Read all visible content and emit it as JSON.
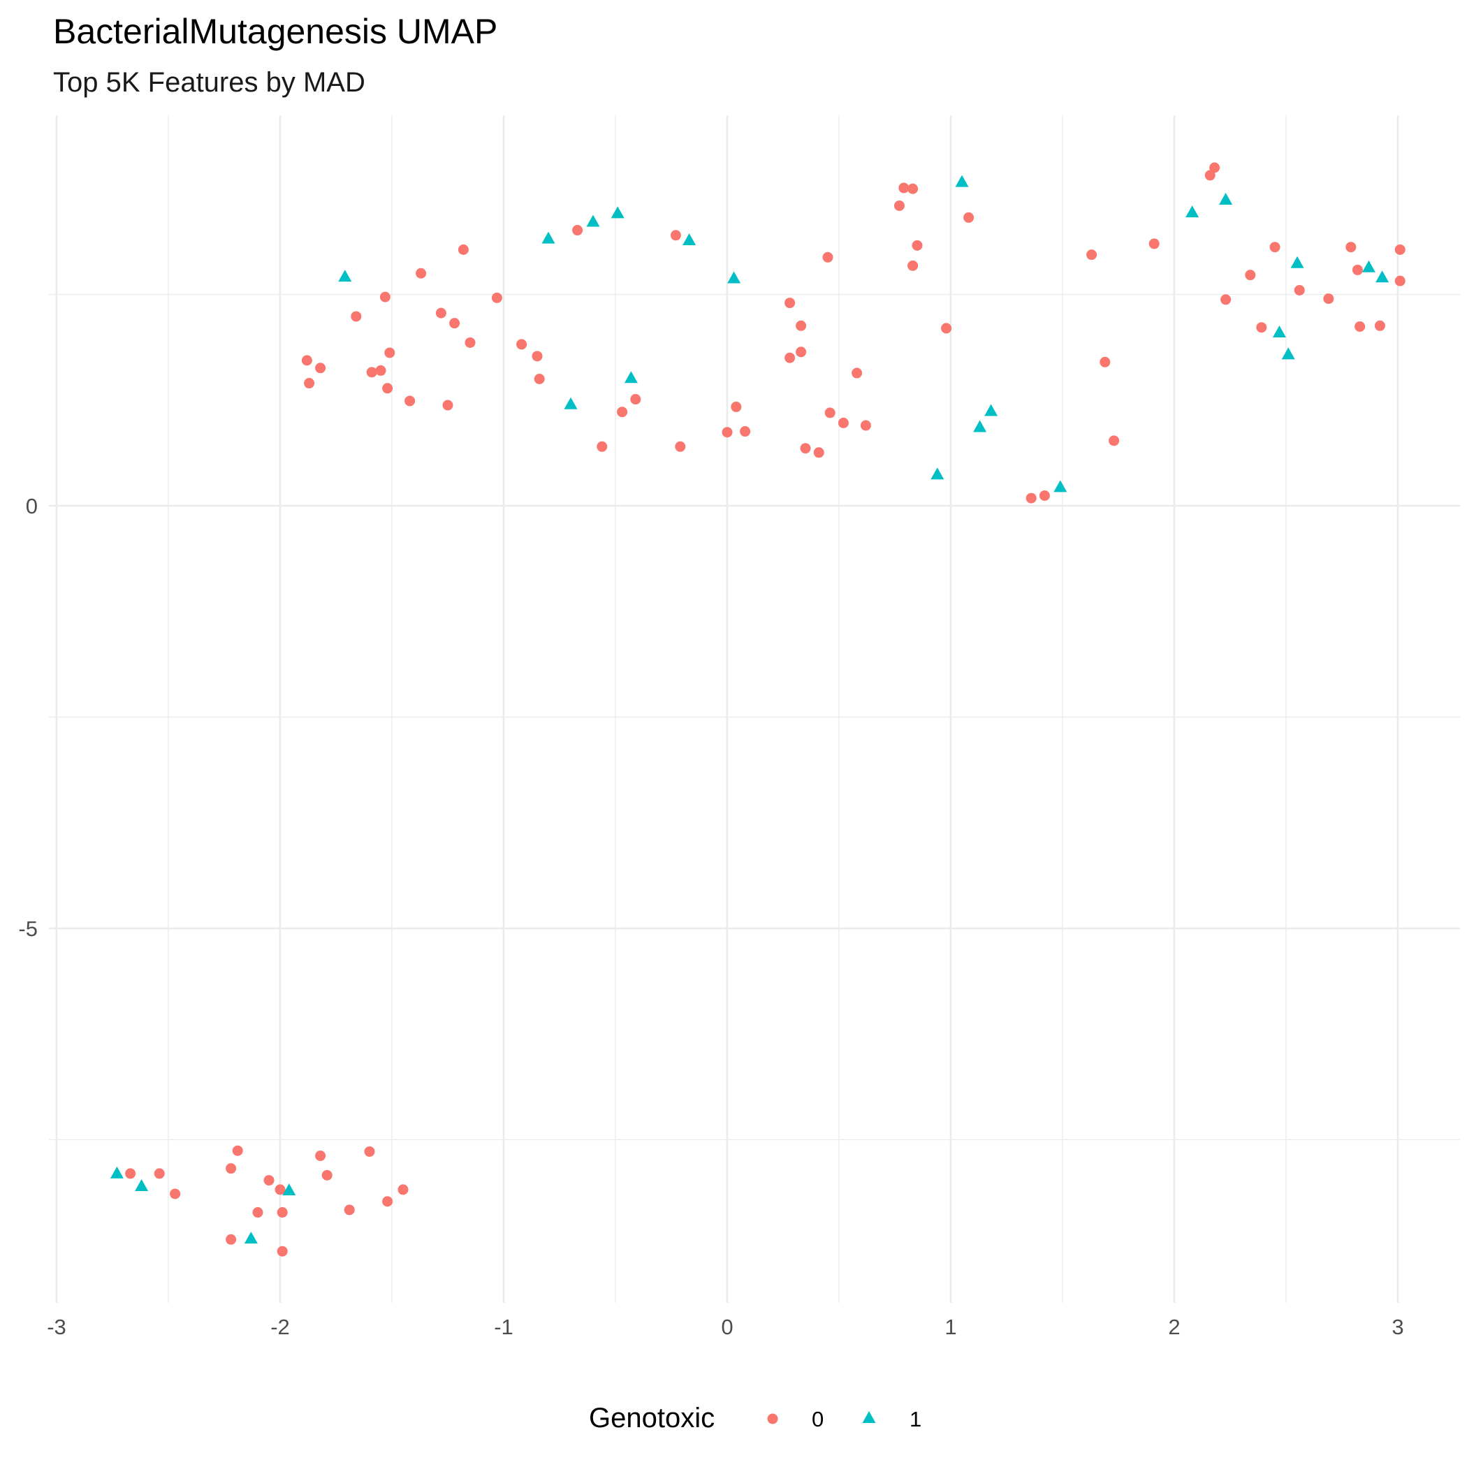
{
  "chart_data": {
    "type": "scatter",
    "title": "BacterialMutagenesis UMAP",
    "subtitle": "Top 5K Features by MAD",
    "xlabel": "",
    "ylabel": "",
    "xlim": [
      -3,
      3.3
    ],
    "ylim": [
      -9.3,
      4.7
    ],
    "x_ticks": [
      -3,
      -2,
      -1,
      0,
      1,
      2,
      3
    ],
    "y_ticks": [
      0,
      -5
    ],
    "grid": true,
    "legend": {
      "title": "Genotoxic",
      "position": "bottom",
      "entries": [
        {
          "label": "0",
          "color": "#F8766D",
          "shape": "circle"
        },
        {
          "label": "1",
          "color": "#00BFC4",
          "shape": "triangle"
        }
      ]
    },
    "series": [
      {
        "name": "0",
        "color": "#F8766D",
        "shape": "circle",
        "points": [
          [
            -1.18,
            3.03
          ],
          [
            -1.37,
            2.75
          ],
          [
            -1.53,
            2.47
          ],
          [
            -1.66,
            2.24
          ],
          [
            -1.28,
            2.28
          ],
          [
            -1.22,
            2.16
          ],
          [
            -1.15,
            1.93
          ],
          [
            -1.51,
            1.81
          ],
          [
            -1.88,
            1.72
          ],
          [
            -1.82,
            1.63
          ],
          [
            -1.87,
            1.45
          ],
          [
            -1.59,
            1.58
          ],
          [
            -1.55,
            1.6
          ],
          [
            -1.52,
            1.39
          ],
          [
            -1.42,
            1.24
          ],
          [
            -1.25,
            1.19
          ],
          [
            -1.03,
            2.46
          ],
          [
            -0.92,
            1.91
          ],
          [
            -0.85,
            1.77
          ],
          [
            -0.84,
            1.5
          ],
          [
            -0.67,
            3.26
          ],
          [
            -0.56,
            0.7
          ],
          [
            -0.47,
            1.11
          ],
          [
            -0.41,
            1.26
          ],
          [
            -0.23,
            3.2
          ],
          [
            -0.21,
            0.7
          ],
          [
            0.0,
            0.87
          ],
          [
            0.04,
            1.17
          ],
          [
            0.08,
            0.88
          ],
          [
            0.28,
            2.4
          ],
          [
            0.28,
            1.75
          ],
          [
            0.33,
            2.13
          ],
          [
            0.33,
            1.82
          ],
          [
            0.35,
            0.68
          ],
          [
            0.41,
            0.63
          ],
          [
            0.45,
            2.94
          ],
          [
            0.46,
            1.1
          ],
          [
            0.52,
            0.98
          ],
          [
            0.58,
            1.57
          ],
          [
            0.62,
            0.95
          ],
          [
            0.77,
            3.55
          ],
          [
            0.79,
            3.76
          ],
          [
            0.83,
            3.75
          ],
          [
            0.85,
            3.08
          ],
          [
            0.83,
            2.84
          ],
          [
            0.98,
            2.1
          ],
          [
            1.08,
            3.41
          ],
          [
            1.36,
            0.09
          ],
          [
            1.42,
            0.12
          ],
          [
            1.63,
            2.97
          ],
          [
            1.69,
            1.7
          ],
          [
            1.73,
            0.77
          ],
          [
            1.91,
            3.1
          ],
          [
            2.16,
            3.91
          ],
          [
            2.18,
            4.0
          ],
          [
            2.23,
            2.44
          ],
          [
            2.34,
            2.73
          ],
          [
            2.39,
            2.11
          ],
          [
            2.45,
            3.06
          ],
          [
            2.56,
            2.55
          ],
          [
            2.69,
            2.45
          ],
          [
            2.79,
            3.06
          ],
          [
            2.82,
            2.79
          ],
          [
            2.83,
            2.12
          ],
          [
            2.92,
            2.13
          ],
          [
            3.01,
            3.03
          ],
          [
            3.01,
            2.66
          ],
          [
            -2.67,
            -7.9
          ],
          [
            -2.54,
            -7.9
          ],
          [
            -2.47,
            -8.14
          ],
          [
            -2.19,
            -7.63
          ],
          [
            -2.22,
            -7.84
          ],
          [
            -2.05,
            -7.98
          ],
          [
            -2.0,
            -8.09
          ],
          [
            -2.1,
            -8.36
          ],
          [
            -1.99,
            -8.36
          ],
          [
            -2.22,
            -8.68
          ],
          [
            -1.99,
            -8.82
          ],
          [
            -1.82,
            -7.69
          ],
          [
            -1.79,
            -7.92
          ],
          [
            -1.69,
            -8.33
          ],
          [
            -1.6,
            -7.64
          ],
          [
            -1.52,
            -8.23
          ],
          [
            -1.45,
            -8.09
          ]
        ]
      },
      {
        "name": "1",
        "color": "#00BFC4",
        "shape": "triangle",
        "points": [
          [
            -1.71,
            2.71
          ],
          [
            -0.8,
            3.16
          ],
          [
            -0.6,
            3.36
          ],
          [
            -0.49,
            3.46
          ],
          [
            -0.7,
            1.2
          ],
          [
            -0.43,
            1.51
          ],
          [
            -0.17,
            3.14
          ],
          [
            0.03,
            2.69
          ],
          [
            0.94,
            0.37
          ],
          [
            1.05,
            3.83
          ],
          [
            1.13,
            0.93
          ],
          [
            1.18,
            1.12
          ],
          [
            1.49,
            0.22
          ],
          [
            2.08,
            3.47
          ],
          [
            2.23,
            3.62
          ],
          [
            2.47,
            2.05
          ],
          [
            2.51,
            1.79
          ],
          [
            2.55,
            2.87
          ],
          [
            2.87,
            2.82
          ],
          [
            2.93,
            2.7
          ],
          [
            -2.73,
            -7.9
          ],
          [
            -2.62,
            -8.05
          ],
          [
            -2.13,
            -8.67
          ],
          [
            -1.96,
            -8.1
          ]
        ]
      }
    ]
  }
}
